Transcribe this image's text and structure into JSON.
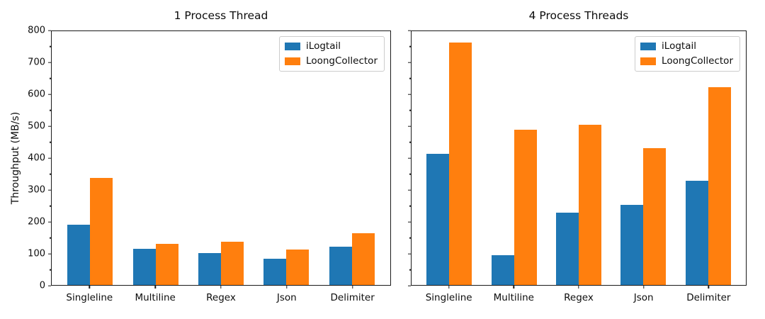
{
  "figure": {
    "background": "#ffffff",
    "text_color": "#0d0d0d",
    "ylabel": "Throughput (MB/s)"
  },
  "chart_data": [
    {
      "type": "bar",
      "title": "1 Process Thread",
      "categories": [
        "Singleline",
        "Multiline",
        "Regex",
        "Json",
        "Delimiter"
      ],
      "series": [
        {
          "name": "iLogtail",
          "color": "#1f77b4",
          "values": [
            190,
            114,
            101,
            82,
            121
          ]
        },
        {
          "name": "LoongCollector",
          "color": "#ff7f0e",
          "values": [
            337,
            129,
            136,
            112,
            164
          ]
        }
      ],
      "xlabel": "",
      "ylabel": "Throughput (MB/s)",
      "ylim": [
        0,
        800
      ],
      "yticks": [
        0,
        100,
        200,
        300,
        400,
        500,
        600,
        700,
        800
      ],
      "minor_ytick_step": 50,
      "show_ytick_labels": true,
      "legend_position": "upper right",
      "grid": false
    },
    {
      "type": "bar",
      "title": "4 Process Threads",
      "categories": [
        "Singleline",
        "Multiline",
        "Regex",
        "Json",
        "Delimiter"
      ],
      "series": [
        {
          "name": "iLogtail",
          "color": "#1f77b4",
          "values": [
            414,
            93,
            229,
            252,
            329
          ]
        },
        {
          "name": "LoongCollector",
          "color": "#ff7f0e",
          "values": [
            764,
            489,
            506,
            432,
            624
          ]
        }
      ],
      "xlabel": "",
      "ylabel": "Throughput (MB/s)",
      "ylim": [
        0,
        800
      ],
      "yticks": [
        0,
        100,
        200,
        300,
        400,
        500,
        600,
        700,
        800
      ],
      "minor_ytick_step": 50,
      "show_ytick_labels": false,
      "legend_position": "upper right",
      "grid": false
    }
  ]
}
